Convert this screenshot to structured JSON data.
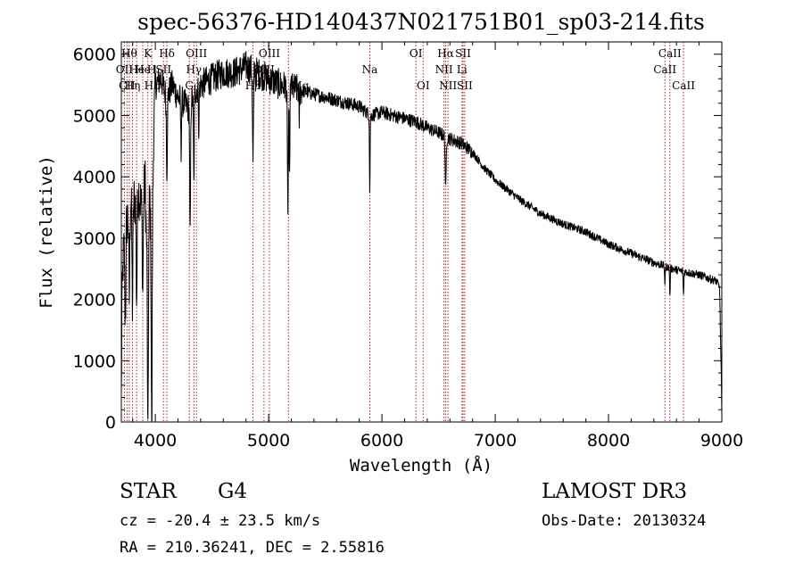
{
  "chart_data": {
    "type": "line",
    "title": "spec-56376-HD140437N021751B01_sp03-214.fits",
    "xlabel": "Wavelength (Å)",
    "ylabel": "Flux (relative)",
    "xlim": [
      3700,
      9000
    ],
    "ylim": [
      0,
      6200
    ],
    "xticks": [
      4000,
      5000,
      6000,
      7000,
      8000,
      9000
    ],
    "yticks": [
      0,
      1000,
      2000,
      3000,
      4000,
      5000,
      6000
    ],
    "grid": false,
    "line_color": "#000000",
    "marker_color": "#b22222",
    "spectrum_anchors": [
      [
        3700,
        300
      ],
      [
        3705,
        1800
      ],
      [
        3715,
        2600
      ],
      [
        3730,
        3000
      ],
      [
        3760,
        3400
      ],
      [
        3790,
        3700
      ],
      [
        3820,
        3600
      ],
      [
        3850,
        3800
      ],
      [
        3880,
        3500
      ],
      [
        3910,
        3900
      ],
      [
        3935,
        2000
      ],
      [
        3950,
        3800
      ],
      [
        3968,
        2200
      ],
      [
        3985,
        4700
      ],
      [
        4000,
        5500
      ],
      [
        4050,
        5600
      ],
      [
        4100,
        5300
      ],
      [
        4150,
        5500
      ],
      [
        4200,
        5300
      ],
      [
        4250,
        5200
      ],
      [
        4300,
        5100
      ],
      [
        4350,
        5400
      ],
      [
        4400,
        5500
      ],
      [
        4500,
        5600
      ],
      [
        4600,
        5700
      ],
      [
        4700,
        5700
      ],
      [
        4800,
        5800
      ],
      [
        4900,
        5700
      ],
      [
        5000,
        5600
      ],
      [
        5100,
        5500
      ],
      [
        5200,
        5450
      ],
      [
        5300,
        5400
      ],
      [
        5400,
        5350
      ],
      [
        5500,
        5300
      ],
      [
        5600,
        5250
      ],
      [
        5700,
        5200
      ],
      [
        5800,
        5150
      ],
      [
        5900,
        5000
      ],
      [
        6000,
        5050
      ],
      [
        6100,
        5000
      ],
      [
        6200,
        4950
      ],
      [
        6300,
        4900
      ],
      [
        6400,
        4800
      ],
      [
        6500,
        4720
      ],
      [
        6600,
        4620
      ],
      [
        6700,
        4550
      ],
      [
        6800,
        4400
      ],
      [
        6900,
        4150
      ],
      [
        7000,
        3950
      ],
      [
        7200,
        3650
      ],
      [
        7400,
        3400
      ],
      [
        7600,
        3230
      ],
      [
        7800,
        3100
      ],
      [
        8000,
        2900
      ],
      [
        8200,
        2750
      ],
      [
        8400,
        2600
      ],
      [
        8600,
        2480
      ],
      [
        8800,
        2400
      ],
      [
        8950,
        2300
      ],
      [
        8980,
        2200
      ],
      [
        8995,
        800
      ],
      [
        9000,
        100
      ]
    ],
    "absorption_dips": [
      {
        "x": 3735,
        "depth": 1400,
        "w": 6
      },
      {
        "x": 3770,
        "depth": 1500,
        "w": 6
      },
      {
        "x": 3798,
        "depth": 1800,
        "w": 6
      },
      {
        "x": 3835,
        "depth": 1700,
        "w": 6
      },
      {
        "x": 3889,
        "depth": 1500,
        "w": 6
      },
      {
        "x": 3934,
        "depth": 2500,
        "w": 5
      },
      {
        "x": 3968,
        "depth": 2700,
        "w": 5
      },
      {
        "x": 4102,
        "depth": 1200,
        "w": 6
      },
      {
        "x": 4227,
        "depth": 900,
        "w": 4
      },
      {
        "x": 4307,
        "depth": 2200,
        "w": 5
      },
      {
        "x": 4340,
        "depth": 1500,
        "w": 5
      },
      {
        "x": 4384,
        "depth": 700,
        "w": 4
      },
      {
        "x": 4862,
        "depth": 1500,
        "w": 6
      },
      {
        "x": 5167,
        "depth": 1300,
        "w": 4
      },
      {
        "x": 5172,
        "depth": 1500,
        "w": 4
      },
      {
        "x": 5184,
        "depth": 1700,
        "w": 4
      },
      {
        "x": 5270,
        "depth": 500,
        "w": 4
      },
      {
        "x": 5893,
        "depth": 1300,
        "w": 4
      },
      {
        "x": 6563,
        "depth": 900,
        "w": 6
      },
      {
        "x": 8498,
        "depth": 300,
        "w": 4
      },
      {
        "x": 8542,
        "depth": 500,
        "w": 4
      },
      {
        "x": 8662,
        "depth": 400,
        "w": 4
      }
    ],
    "line_markers": [
      {
        "x": 3727,
        "label": "OII",
        "row": 1
      },
      {
        "x": 3750,
        "label": "CII",
        "row": 2
      },
      {
        "x": 3770,
        "label": "Hθ",
        "row": 0
      },
      {
        "x": 3798,
        "label": "Hη",
        "row": 2
      },
      {
        "x": 3835,
        "label": "He",
        "row": 1
      },
      {
        "x": 3889,
        "label": "He",
        "row": 1
      },
      {
        "x": 3934,
        "label": "K",
        "row": 0
      },
      {
        "x": 3968,
        "label": "H",
        "row": 1
      },
      {
        "x": 3968,
        "label": "Hε",
        "row": 2
      },
      {
        "x": 4102,
        "label": "Hδ",
        "row": 0
      },
      {
        "x": 4072,
        "label": "SII",
        "row": 1
      },
      {
        "x": 4300,
        "label": "G",
        "row": 2
      },
      {
        "x": 4340,
        "label": "Hγ",
        "row": 1
      },
      {
        "x": 4363,
        "label": "OIII",
        "row": 0
      },
      {
        "x": 4861,
        "label": "Hβ",
        "row": 2
      },
      {
        "x": 4959,
        "label": "OIII",
        "row": 1
      },
      {
        "x": 5007,
        "label": "OIII",
        "row": 0
      },
      {
        "x": 5175,
        "label": "Mg",
        "row": 3
      },
      {
        "x": 5893,
        "label": "Na",
        "row": 1
      },
      {
        "x": 6300,
        "label": "OI",
        "row": 0
      },
      {
        "x": 6364,
        "label": "OI",
        "row": 2
      },
      {
        "x": 6548,
        "label": "NII",
        "row": 1
      },
      {
        "x": 6563,
        "label": "Hα",
        "row": 0
      },
      {
        "x": 6583,
        "label": "NII",
        "row": 2
      },
      {
        "x": 6707,
        "label": "Li",
        "row": 1
      },
      {
        "x": 6716,
        "label": "SII",
        "row": 0
      },
      {
        "x": 6731,
        "label": "SII",
        "row": 2
      },
      {
        "x": 8498,
        "label": "CaII",
        "row": 1
      },
      {
        "x": 8542,
        "label": "CaII",
        "row": 0
      },
      {
        "x": 8662,
        "label": "CaII",
        "row": 2
      }
    ]
  },
  "info": {
    "object_class": "STAR",
    "subclass": "G4",
    "survey": "LAMOST DR3",
    "redshift_line": "cz = -20.4 ± 23.5 km/s",
    "obs_date_line": "Obs-Date: 20130324",
    "coords_line": "RA = 210.36241, DEC =   2.55816"
  }
}
